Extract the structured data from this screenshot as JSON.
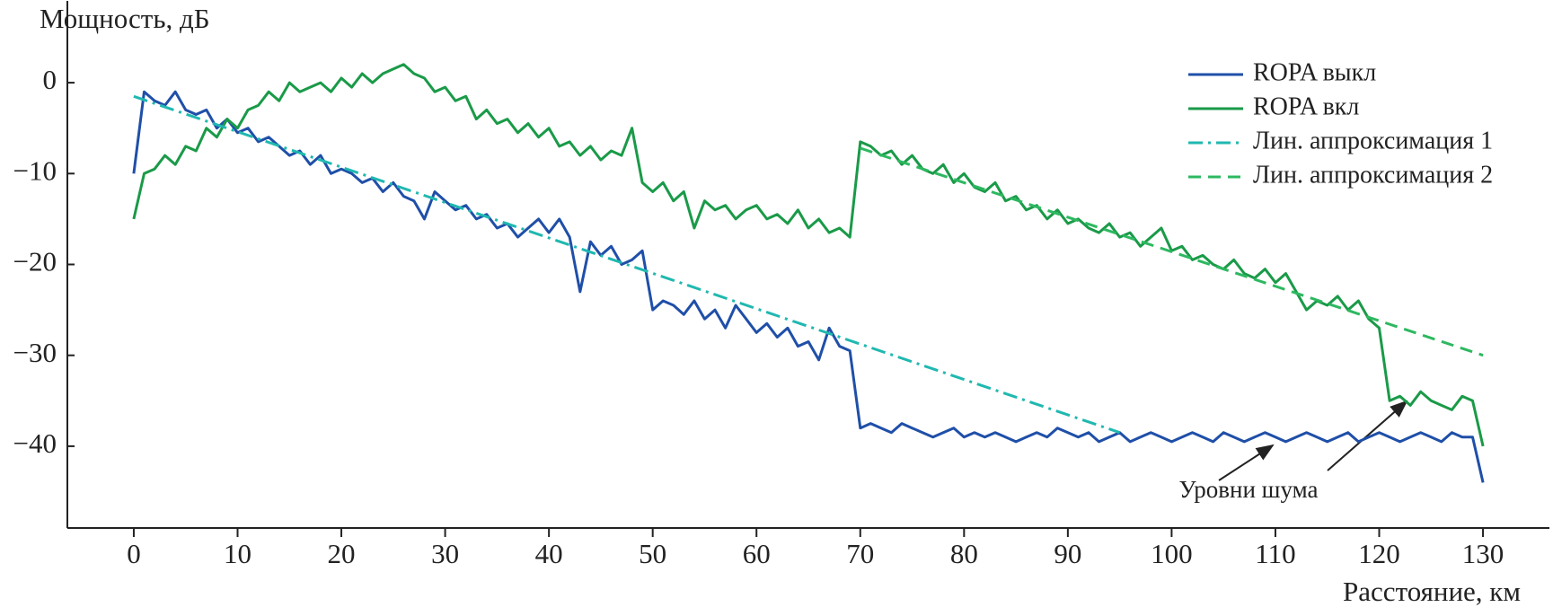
{
  "chart_data": {
    "type": "line",
    "y_label": "Мощность, дБ",
    "x_label": "Расстояние, км",
    "annotation": "Уровни шума",
    "xlim": [
      -6.4,
      136.4
    ],
    "ylim": [
      -49,
      9
    ],
    "xticks": [
      0,
      10,
      20,
      30,
      40,
      50,
      60,
      70,
      80,
      90,
      100,
      110,
      120,
      130
    ],
    "yticks": [
      {
        "value": -40,
        "label": "−40"
      },
      {
        "value": -30,
        "label": "−30"
      },
      {
        "value": -20,
        "label": "−20"
      },
      {
        "value": -10,
        "label": "−10"
      },
      0
    ],
    "legend": "upper right",
    "x": [
      0,
      1,
      2,
      3,
      4,
      5,
      6,
      7,
      8,
      9,
      10,
      11,
      12,
      13,
      14,
      15,
      16,
      17,
      18,
      19,
      20,
      21,
      22,
      23,
      24,
      25,
      26,
      27,
      28,
      29,
      30,
      31,
      32,
      33,
      34,
      35,
      36,
      37,
      38,
      39,
      40,
      41,
      42,
      43,
      44,
      45,
      46,
      47,
      48,
      49,
      50,
      51,
      52,
      53,
      54,
      55,
      56,
      57,
      58,
      59,
      60,
      61,
      62,
      63,
      64,
      65,
      66,
      67,
      68,
      69,
      70,
      71,
      72,
      73,
      74,
      75,
      76,
      77,
      78,
      79,
      80,
      81,
      82,
      83,
      84,
      85,
      86,
      87,
      88,
      89,
      90,
      91,
      92,
      93,
      94,
      95,
      96,
      97,
      98,
      99,
      100,
      101,
      102,
      103,
      104,
      105,
      106,
      107,
      108,
      109,
      110,
      111,
      112,
      113,
      114,
      115,
      116,
      117,
      118,
      119,
      120,
      121,
      122,
      123,
      124,
      125,
      126,
      127,
      128,
      129,
      130
    ],
    "series": [
      {
        "name": "ROPA выкл",
        "color": "#1f4fa8",
        "style": "solid",
        "values": [
          -10,
          -1,
          -2,
          -2.5,
          -1,
          -3,
          -3.5,
          -3,
          -5,
          -4,
          -5.5,
          -5,
          -6.5,
          -6,
          -7,
          -8,
          -7.5,
          -9,
          -8,
          -10,
          -9.5,
          -10,
          -11,
          -10.5,
          -12,
          -11,
          -12.5,
          -13,
          -15,
          -12,
          -13,
          -14,
          -13.5,
          -15,
          -14.5,
          -16,
          -15.5,
          -17,
          -16,
          -15,
          -16.5,
          -15,
          -17,
          -23,
          -17.5,
          -19,
          -18,
          -20,
          -19.5,
          -18.5,
          -25,
          -24,
          -24.5,
          -25.5,
          -24,
          -26,
          -25,
          -27,
          -24.5,
          -26,
          -27.5,
          -26.5,
          -28,
          -27,
          -29,
          -28.5,
          -30.5,
          -27,
          -29,
          -29.5,
          -38,
          -37.5,
          -38,
          -38.5,
          -37.5,
          -38,
          -38.5,
          -39,
          -38.5,
          -38,
          -39,
          -38.5,
          -39,
          -38.5,
          -39,
          -39.5,
          -39,
          -38.5,
          -39,
          -38,
          -38.5,
          -39,
          -38.5,
          -39.5,
          -39,
          -38.5,
          -39.5,
          -39,
          -38.5,
          -39,
          -39.5,
          -39,
          -38.5,
          -39,
          -39.5,
          -38.5,
          -39,
          -39.5,
          -39,
          -38.5,
          -39,
          -39.5,
          -39,
          -38.5,
          -39,
          -39.5,
          -39,
          -38.5,
          -39.5,
          -39,
          -38.5,
          -39,
          -39.5,
          -39,
          -38.5,
          -39,
          -39.5,
          -38.5,
          -39,
          -39,
          -44
        ]
      },
      {
        "name": "ROPA вкл",
        "color": "#1a9a48",
        "style": "solid",
        "values": [
          -15,
          -10,
          -9.5,
          -8,
          -9,
          -7,
          -7.5,
          -5,
          -6,
          -4,
          -5,
          -3,
          -2.5,
          -1,
          -2,
          0,
          -1,
          -0.5,
          0,
          -1,
          0.5,
          -0.5,
          1,
          0,
          1,
          1.5,
          2,
          1,
          0.5,
          -1,
          -0.5,
          -2,
          -1.5,
          -4,
          -3,
          -4.5,
          -4,
          -5.5,
          -4.5,
          -6,
          -5,
          -7,
          -6.5,
          -8,
          -7,
          -8.5,
          -7.5,
          -8,
          -5,
          -11,
          -12,
          -11,
          -13,
          -12,
          -16,
          -13,
          -14,
          -13.5,
          -15,
          -14,
          -13.5,
          -15,
          -14.5,
          -15.5,
          -14,
          -16,
          -15,
          -16.5,
          -16,
          -17,
          -6.5,
          -7,
          -8,
          -7.5,
          -9,
          -8,
          -9.5,
          -10,
          -9,
          -11,
          -10,
          -11.5,
          -12,
          -11,
          -13,
          -12.5,
          -14,
          -13.5,
          -15,
          -14,
          -15.5,
          -15,
          -16,
          -16.5,
          -15.5,
          -17,
          -16.5,
          -18,
          -17,
          -16,
          -18.5,
          -18,
          -19.5,
          -19,
          -20,
          -20.5,
          -19.5,
          -21,
          -21.5,
          -20.5,
          -22,
          -21,
          -23,
          -25,
          -24,
          -24.5,
          -23.5,
          -25,
          -24,
          -26,
          -27,
          -35,
          -34.5,
          -35.5,
          -34,
          -35,
          -35.5,
          -36,
          -34.5,
          -35,
          -40
        ]
      },
      {
        "name": "Лин. аппроксимация 1",
        "color": "#20b8b0",
        "style": "dashdot",
        "x": [
          0,
          95
        ],
        "values": [
          -1.5,
          -38.5
        ]
      },
      {
        "name": "Лин. аппроксимация 2",
        "color": "#2db860",
        "style": "dashed",
        "x": [
          70,
          130
        ],
        "values": [
          -7.2,
          -30
        ]
      }
    ]
  }
}
